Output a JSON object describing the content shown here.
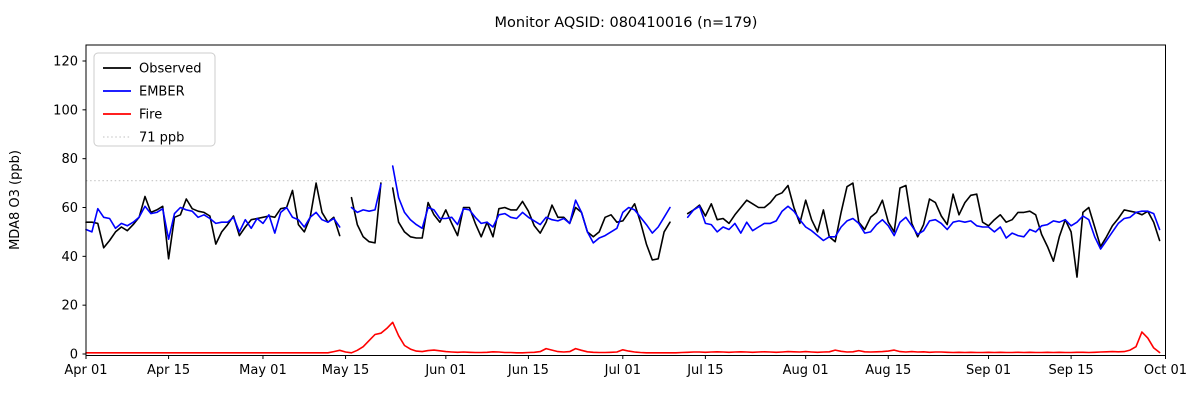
{
  "title": "Monitor AQSID: 080410016 (n=179)",
  "axes": {
    "ylabel": "MDA8 O3 (ppb)",
    "yticks": [
      0,
      20,
      40,
      60,
      80,
      100,
      120
    ],
    "xticks": [
      {
        "day": 0,
        "label": "Apr 01"
      },
      {
        "day": 14,
        "label": "Apr 15"
      },
      {
        "day": 30,
        "label": "May 01"
      },
      {
        "day": 44,
        "label": "May 15"
      },
      {
        "day": 61,
        "label": "Jun 01"
      },
      {
        "day": 75,
        "label": "Jun 15"
      },
      {
        "day": 91,
        "label": "Jul 01"
      },
      {
        "day": 105,
        "label": "Jul 15"
      },
      {
        "day": 122,
        "label": "Aug 01"
      },
      {
        "day": 136,
        "label": "Aug 15"
      },
      {
        "day": 153,
        "label": "Sep 01"
      },
      {
        "day": 167,
        "label": "Sep 15"
      },
      {
        "day": 183,
        "label": "Oct 01"
      }
    ],
    "x_total_days": 183,
    "spine_color": "#000000"
  },
  "legend": {
    "entries": [
      {
        "label": "Observed",
        "color": "#000000",
        "style": "solid"
      },
      {
        "label": "EMBER",
        "color": "#0000ff",
        "style": "solid"
      },
      {
        "label": "Fire",
        "color": "#ff0000",
        "style": "solid"
      },
      {
        "label": "71 ppb",
        "color": "#cccccc",
        "style": "dotted"
      }
    ]
  },
  "chart_data": {
    "type": "line",
    "title": "Monitor AQSID: 080410016 (n=179)",
    "xlabel": "",
    "ylabel": "MDA8 O3 (ppb)",
    "ylim": [
      0,
      127
    ],
    "x_unit": "days since Apr 01 (daily values, null = missing day)",
    "x_start_label": "Apr 01",
    "x_end_label": "Oct 01",
    "grid": false,
    "legend_position": "upper left",
    "threshold": {
      "value": 71,
      "label": "71 ppb",
      "color": "#cccccc",
      "style": "dotted"
    },
    "missing_days": [
      "May 15",
      "May 22",
      "Jul 10",
      "Jul 11"
    ],
    "n_observed": 179,
    "series": [
      {
        "name": "Observed",
        "color": "#000000",
        "values": [
          54,
          54,
          53.5,
          43.5,
          46.5,
          50,
          52,
          50.5,
          53,
          56,
          64.5,
          58,
          59,
          60.5,
          39,
          56,
          57,
          63.5,
          59.5,
          58.5,
          58,
          56.5,
          45,
          50,
          53,
          56.5,
          48.5,
          52,
          55,
          55.5,
          56,
          56.5,
          56,
          59.5,
          60,
          67,
          53,
          50,
          56,
          70,
          58,
          54,
          56,
          48.5,
          null,
          64,
          53,
          48,
          46,
          45.5,
          70,
          null,
          68,
          54,
          50,
          48,
          47.5,
          47.5,
          62,
          57,
          54,
          59,
          53.5,
          48.5,
          60,
          60,
          53.5,
          48,
          54,
          48,
          59.5,
          60,
          59,
          59,
          62.5,
          58.5,
          52.5,
          49.5,
          54,
          61,
          56,
          56,
          53.5,
          60,
          58,
          50,
          48,
          50,
          56,
          57,
          54,
          54.5,
          58,
          61.5,
          54,
          45,
          38.5,
          39,
          50,
          54,
          null,
          null,
          57.5,
          59,
          61,
          56.5,
          61.5,
          55,
          55.5,
          53.5,
          57,
          60,
          63,
          61.5,
          60,
          60,
          62,
          65,
          66,
          69,
          60,
          53.5,
          63,
          55,
          50,
          59,
          48,
          46,
          58,
          68.5,
          70,
          54,
          51,
          56,
          58,
          63,
          54,
          50,
          68,
          69,
          53.5,
          48,
          53,
          63.5,
          62,
          56.5,
          53,
          65.5,
          57,
          62,
          65,
          65.5,
          54,
          52.5,
          55,
          57,
          54,
          55,
          58,
          58,
          58.5,
          57,
          49,
          44,
          38,
          48,
          55,
          50,
          31.5,
          58,
          60,
          52,
          44,
          48,
          52.5,
          55.5,
          59,
          58.5,
          58,
          57,
          58.5,
          54,
          46.5
        ]
      },
      {
        "name": "EMBER",
        "color": "#0000ff",
        "values": [
          51,
          50,
          59.5,
          56,
          55.5,
          51.5,
          53.5,
          52.5,
          54,
          56,
          60.5,
          57.5,
          58,
          59.5,
          47,
          57.5,
          60,
          59,
          58.5,
          56,
          57,
          55.5,
          53.5,
          54,
          54,
          56,
          50,
          55,
          51.5,
          55.5,
          53.5,
          57,
          49.5,
          58,
          60,
          56,
          55,
          52,
          56,
          58,
          55,
          54,
          55.5,
          52,
          null,
          60,
          58,
          59,
          58.5,
          59,
          69.5,
          null,
          77,
          64,
          58,
          55,
          53,
          51.5,
          60,
          59,
          55.5,
          55.5,
          56,
          53,
          59.5,
          59,
          56,
          53.5,
          54,
          52,
          57,
          57.5,
          56,
          55.5,
          58,
          56,
          54.5,
          53,
          56,
          55,
          54.5,
          55.5,
          53.5,
          63,
          58,
          50,
          45.5,
          47.5,
          48.5,
          50,
          51.5,
          58,
          60,
          59,
          56,
          53,
          49.5,
          52,
          56,
          60,
          null,
          null,
          56,
          59,
          60.5,
          53.5,
          53,
          50,
          52,
          51,
          53.5,
          49.5,
          54,
          50.5,
          52,
          53.5,
          53.5,
          54.5,
          58.5,
          60.5,
          58.5,
          55,
          52,
          50.5,
          48.5,
          46.5,
          48,
          48,
          52,
          54.5,
          55.5,
          53.5,
          49.5,
          50,
          53,
          55,
          52.5,
          48.5,
          54,
          56,
          52.5,
          49,
          50.5,
          54.5,
          55,
          53.5,
          51,
          54,
          54.5,
          54,
          54.5,
          52.5,
          52,
          52,
          50,
          52,
          47.5,
          49.5,
          48.5,
          48,
          51,
          50,
          52.5,
          53,
          54.5,
          54,
          55,
          52.5,
          54,
          56.5,
          55,
          48,
          43,
          46.5,
          50,
          53.5,
          55.5,
          56,
          58,
          58.5,
          58.5,
          57.5,
          51
        ]
      },
      {
        "name": "Fire",
        "color": "#ff0000",
        "values": [
          0.5,
          0.5,
          0.5,
          0.5,
          0.5,
          0.5,
          0.5,
          0.5,
          0.5,
          0.5,
          0.5,
          0.5,
          0.5,
          0.5,
          0.5,
          0.5,
          0.5,
          0.5,
          0.5,
          0.5,
          0.5,
          0.5,
          0.5,
          0.5,
          0.5,
          0.5,
          0.5,
          0.5,
          0.5,
          0.5,
          0.5,
          0.5,
          0.5,
          0.5,
          0.5,
          0.5,
          0.5,
          0.5,
          0.5,
          0.5,
          0.5,
          0.5,
          1,
          1.5,
          0.8,
          0.5,
          1.5,
          3,
          5.5,
          8,
          8.5,
          10.5,
          13,
          7.5,
          3.5,
          2,
          1.2,
          1,
          1.4,
          1.6,
          1.3,
          1,
          0.8,
          0.7,
          0.8,
          0.7,
          0.6,
          0.6,
          0.7,
          0.9,
          0.8,
          0.6,
          0.6,
          0.5,
          0.5,
          0.6,
          0.7,
          1,
          2.2,
          1.6,
          1,
          0.8,
          1,
          2.2,
          1.5,
          0.9,
          0.7,
          0.6,
          0.6,
          0.7,
          0.8,
          1.7,
          1.2,
          0.8,
          0.6,
          0.5,
          0.5,
          0.5,
          0.5,
          0.5,
          0.5,
          0.6,
          0.7,
          0.8,
          0.8,
          0.7,
          0.8,
          0.9,
          0.8,
          0.7,
          0.8,
          0.9,
          0.8,
          0.7,
          0.8,
          0.9,
          0.8,
          0.7,
          0.8,
          1,
          0.9,
          0.8,
          1,
          0.8,
          0.7,
          0.8,
          0.9,
          1.6,
          1.1,
          0.8,
          0.9,
          1.4,
          0.9,
          0.8,
          0.9,
          1,
          1.2,
          1.6,
          1,
          0.8,
          1,
          0.8,
          0.9,
          0.7,
          0.8,
          0.8,
          0.7,
          0.6,
          0.7,
          0.6,
          0.7,
          0.6,
          0.6,
          0.7,
          0.6,
          0.7,
          0.6,
          0.6,
          0.7,
          0.6,
          0.7,
          0.6,
          0.6,
          0.7,
          0.6,
          0.7,
          0.6,
          0.6,
          0.7,
          0.7,
          0.6,
          0.7,
          0.8,
          0.9,
          1,
          0.9,
          1,
          1.6,
          3,
          9,
          6.5,
          2.5,
          0.6
        ]
      }
    ]
  }
}
